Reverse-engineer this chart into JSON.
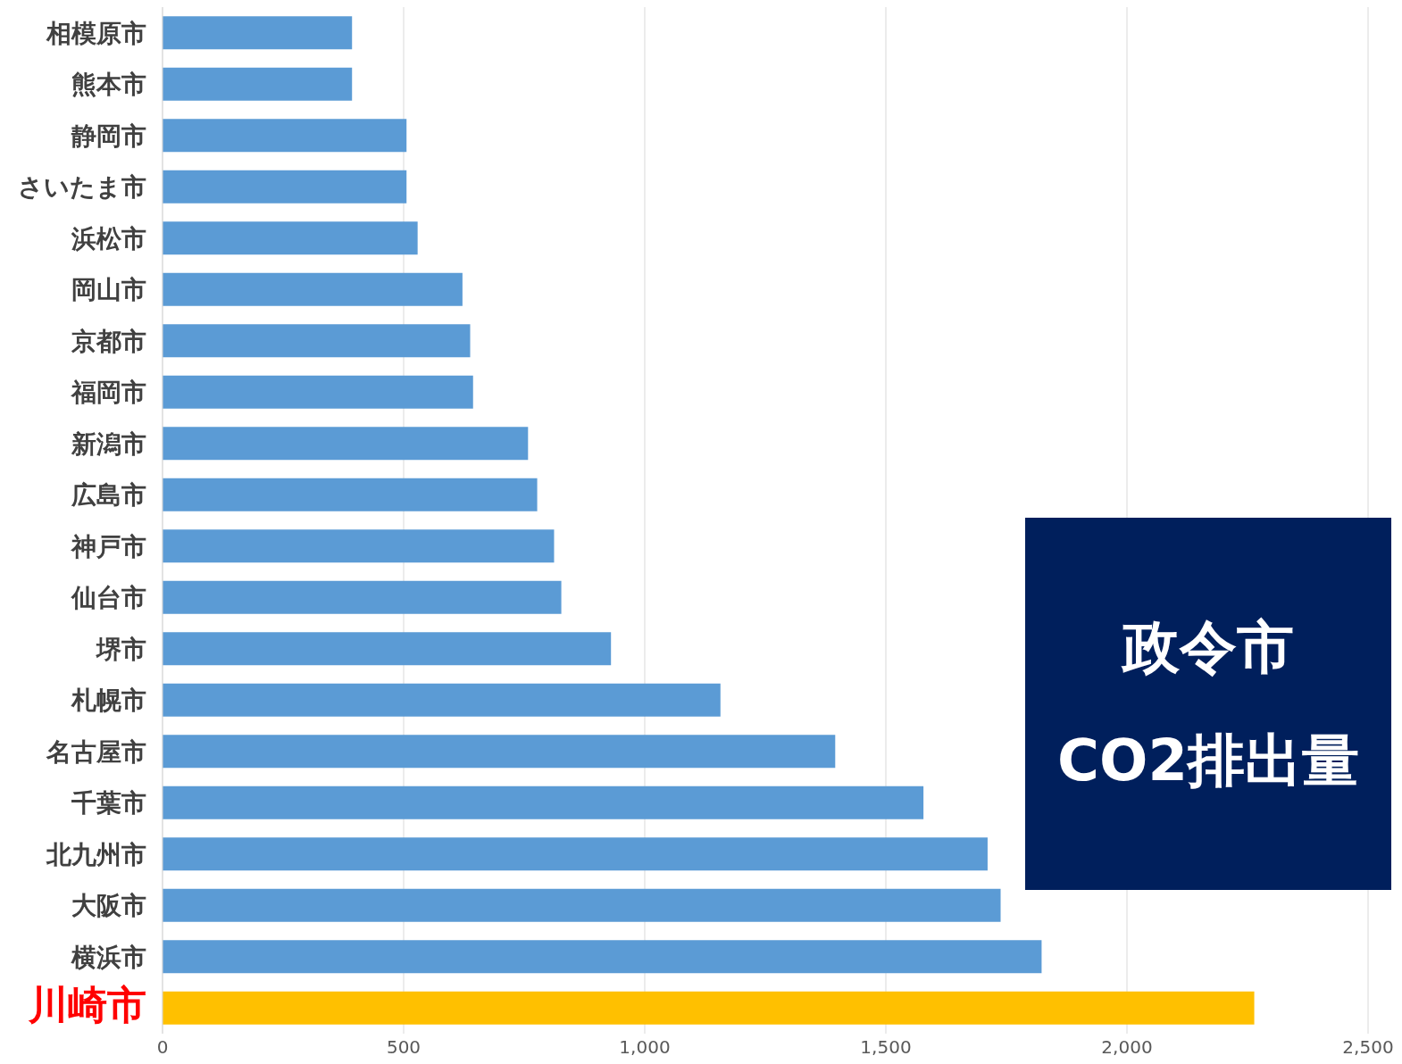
{
  "chart_data": {
    "type": "bar",
    "orientation": "horizontal",
    "categories": [
      "相模原市",
      "熊本市",
      "静岡市",
      "さいたま市",
      "浜松市",
      "岡山市",
      "京都市",
      "福岡市",
      "新潟市",
      "広島市",
      "神戸市",
      "仙台市",
      "堺市",
      "札幌市",
      "名古屋市",
      "千葉市",
      "北九州市",
      "大阪市",
      "横浜市",
      "川崎市"
    ],
    "values": [
      393,
      393,
      506,
      506,
      529,
      622,
      638,
      644,
      758,
      777,
      812,
      827,
      930,
      1157,
      1395,
      1578,
      1711,
      1738,
      1823,
      2264
    ],
    "colors": [
      "#5b9bd5",
      "#5b9bd5",
      "#5b9bd5",
      "#5b9bd5",
      "#5b9bd5",
      "#5b9bd5",
      "#5b9bd5",
      "#5b9bd5",
      "#5b9bd5",
      "#5b9bd5",
      "#5b9bd5",
      "#5b9bd5",
      "#5b9bd5",
      "#5b9bd5",
      "#5b9bd5",
      "#5b9bd5",
      "#5b9bd5",
      "#5b9bd5",
      "#5b9bd5",
      "#ffc000"
    ],
    "xlim": [
      0,
      2500
    ],
    "xticks": [
      0,
      500,
      {
        "value": 1000,
        "label": "1,000"
      },
      {
        "value": 1500,
        "label": "1,500"
      },
      {
        "value": 2000,
        "label": "2,000"
      },
      {
        "value": 2500,
        "label": "2,500"
      }
    ],
    "grid": "x",
    "annotations": [
      "政令市",
      "CO2排出量"
    ]
  }
}
